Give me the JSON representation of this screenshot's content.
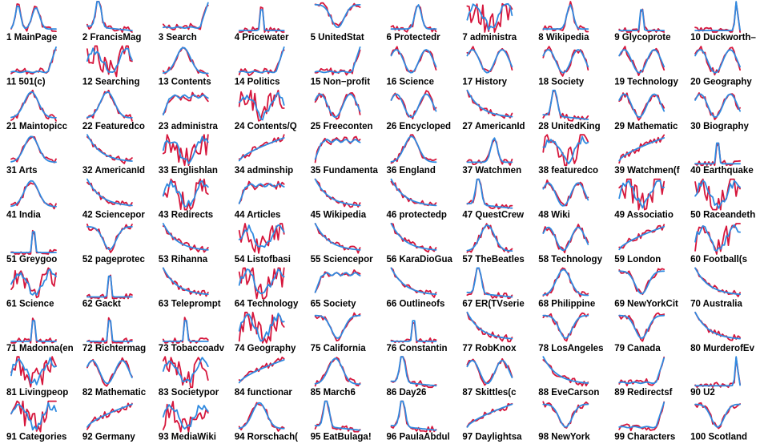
{
  "colors": {
    "series_a": "#d6163c",
    "series_b": "#2f8ae0"
  },
  "chart_data": {
    "type": "line",
    "layout": "small-multiples",
    "series_names": [
      "",
      ""
    ],
    "panels": [
      {
        "label": "1 MainPage",
        "shape": "peak"
      },
      {
        "label": "2 FrancisMag",
        "shape": "peakdecay"
      },
      {
        "label": "3 Search",
        "shape": "rise_end"
      },
      {
        "label": "4 Pricewater",
        "shape": "spike"
      },
      {
        "label": "5 UnitedStat",
        "shape": "valley"
      },
      {
        "label": "6 Protectedr",
        "shape": "bump_mid"
      },
      {
        "label": "7 administra",
        "shape": "noisy"
      },
      {
        "label": "8 Wikipedia",
        "shape": "bump_mid"
      },
      {
        "label": "9 Glycoprote",
        "shape": "spike"
      },
      {
        "label": "10 Duckworth–",
        "shape": "spike_end"
      },
      {
        "label": "11 501(c)",
        "shape": "rise_end"
      },
      {
        "label": "12 Searching",
        "shape": "noisy"
      },
      {
        "label": "13 Contents",
        "shape": "hump"
      },
      {
        "label": "14 Politics",
        "shape": "rise_end"
      },
      {
        "label": "15 Non−profit",
        "shape": "rise_end"
      },
      {
        "label": "16 Science",
        "shape": "waves"
      },
      {
        "label": "17 History",
        "shape": "waves"
      },
      {
        "label": "18 Society",
        "shape": "waves"
      },
      {
        "label": "19 Technology",
        "shape": "waves"
      },
      {
        "label": "20 Geography",
        "shape": "waves"
      },
      {
        "label": "21 Maintopicc",
        "shape": "hump"
      },
      {
        "label": "22 Featuredco",
        "shape": "hump"
      },
      {
        "label": "23 administra",
        "shape": "plateau"
      },
      {
        "label": "24 Contents/Q",
        "shape": "noisy"
      },
      {
        "label": "25 Freeconten",
        "shape": "waves"
      },
      {
        "label": "26 Encycloped",
        "shape": "waves"
      },
      {
        "label": "27 AmericanId",
        "shape": "decay"
      },
      {
        "label": "28 UnitedKing",
        "shape": "peakdecay"
      },
      {
        "label": "29 Mathematic",
        "shape": "waves"
      },
      {
        "label": "30 Biography",
        "shape": "waves"
      },
      {
        "label": "31 Arts",
        "shape": "hump"
      },
      {
        "label": "32 AmericanId",
        "shape": "decay"
      },
      {
        "label": "33 Englishlan",
        "shape": "noisy"
      },
      {
        "label": "34 adminship",
        "shape": "rise"
      },
      {
        "label": "35 Fundamenta",
        "shape": "plateau"
      },
      {
        "label": "36 England",
        "shape": "hump"
      },
      {
        "label": "37 Watchmen",
        "shape": "bump_mid"
      },
      {
        "label": "38 featuredco",
        "shape": "noisy"
      },
      {
        "label": "39 Watchmen(f",
        "shape": "rise"
      },
      {
        "label": "40 Earthquake",
        "shape": "spike"
      },
      {
        "label": "41 India",
        "shape": "hump"
      },
      {
        "label": "42 Sciencepor",
        "shape": "decay"
      },
      {
        "label": "43 Redirects",
        "shape": "noisy"
      },
      {
        "label": "44 Articles",
        "shape": "plateau"
      },
      {
        "label": "45 Wikipedia",
        "shape": "decay"
      },
      {
        "label": "46 protectedp",
        "shape": "decay"
      },
      {
        "label": "47 QuestCrew",
        "shape": "peakdecay"
      },
      {
        "label": "48 Wiki",
        "shape": "waves"
      },
      {
        "label": "49 Associatio",
        "shape": "noisy"
      },
      {
        "label": "50 Raceandeth",
        "shape": "noisy"
      },
      {
        "label": "51 Greygoo",
        "shape": "spike"
      },
      {
        "label": "52 pageprotec",
        "shape": "valley"
      },
      {
        "label": "53 Rihanna",
        "shape": "decay"
      },
      {
        "label": "54 Listofbasi",
        "shape": "noisy"
      },
      {
        "label": "55 Sciencepor",
        "shape": "decay"
      },
      {
        "label": "56 KaraDioGua",
        "shape": "decay"
      },
      {
        "label": "57 TheBeatles",
        "shape": "hump"
      },
      {
        "label": "58 Technology",
        "shape": "waves"
      },
      {
        "label": "59 London",
        "shape": "rise"
      },
      {
        "label": "60 Football(s",
        "shape": "noisy"
      },
      {
        "label": "61 Science",
        "shape": "noisy"
      },
      {
        "label": "62 Gackt",
        "shape": "spike"
      },
      {
        "label": "63 Teleprompt",
        "shape": "decay"
      },
      {
        "label": "64 Technology",
        "shape": "noisy"
      },
      {
        "label": "65 Society",
        "shape": "plateau"
      },
      {
        "label": "66 Outlineofs",
        "shape": "decay"
      },
      {
        "label": "67 ER(TVserie",
        "shape": "peakdecay"
      },
      {
        "label": "68 Philippine",
        "shape": "hump"
      },
      {
        "label": "69 NewYorkCit",
        "shape": "valley"
      },
      {
        "label": "70 Australia",
        "shape": "decay"
      },
      {
        "label": "71 Madonna(en",
        "shape": "spike"
      },
      {
        "label": "72 Richtermag",
        "shape": "spike"
      },
      {
        "label": "73 Tobaccoadv",
        "shape": "spike"
      },
      {
        "label": "74 Geography",
        "shape": "noisy"
      },
      {
        "label": "75 California",
        "shape": "valley"
      },
      {
        "label": "76 Constantin",
        "shape": "spike"
      },
      {
        "label": "77 RobKnox",
        "shape": "decay"
      },
      {
        "label": "78 LosAngeles",
        "shape": "valley"
      },
      {
        "label": "79 Canada",
        "shape": "valley"
      },
      {
        "label": "80 MurderofEv",
        "shape": "decay"
      },
      {
        "label": "81 Livingpeop",
        "shape": "noisy"
      },
      {
        "label": "82 Mathematic",
        "shape": "waves"
      },
      {
        "label": "83 Societypor",
        "shape": "noisy"
      },
      {
        "label": "84 functionar",
        "shape": "rise"
      },
      {
        "label": "85 March6",
        "shape": "hump"
      },
      {
        "label": "86 Day26",
        "shape": "peakdecay"
      },
      {
        "label": "87 Skittles(c",
        "shape": "waves"
      },
      {
        "label": "88 EveCarson",
        "shape": "decay"
      },
      {
        "label": "89 Redirectsf",
        "shape": "rise_end"
      },
      {
        "label": "90 U2",
        "shape": "spike_end"
      },
      {
        "label": "91 Categories",
        "shape": "noisy"
      },
      {
        "label": "92 Germany",
        "shape": "rise"
      },
      {
        "label": "93 MediaWiki",
        "shape": "noisy"
      },
      {
        "label": "94 Rorschach(",
        "shape": "hump"
      },
      {
        "label": "95 EatBulaga!",
        "shape": "peakdecay"
      },
      {
        "label": "96 PaulaAbdul",
        "shape": "peakdecay"
      },
      {
        "label": "97 Daylightsa",
        "shape": "rise"
      },
      {
        "label": "98 NewYork",
        "shape": "valley"
      },
      {
        "label": "99 Characters",
        "shape": "rise_end"
      },
      {
        "label": "100 Scotland",
        "shape": "valley"
      }
    ]
  }
}
